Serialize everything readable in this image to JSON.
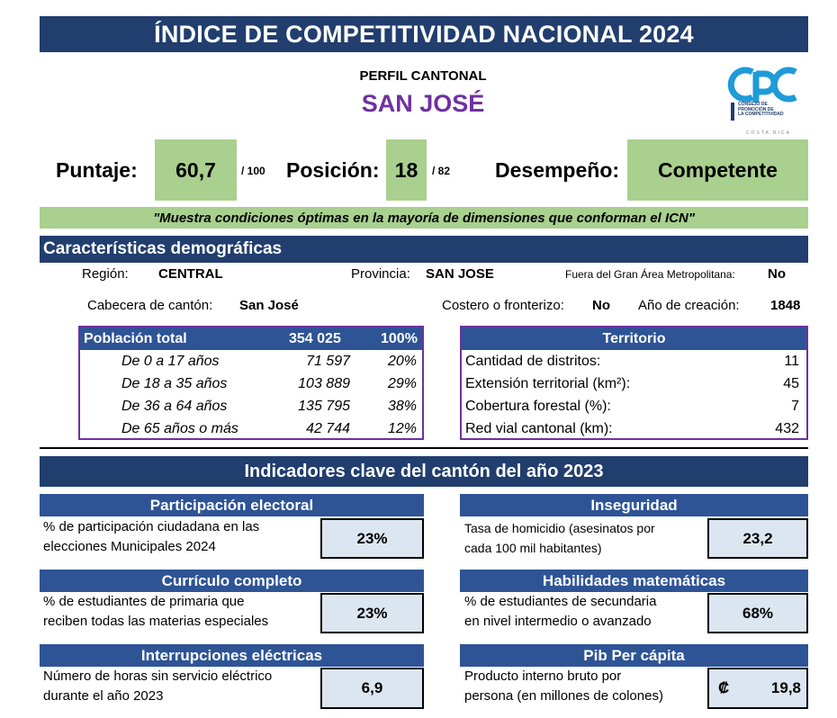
{
  "header": {
    "title": "ÍNDICE DE COMPETITIVIDAD NACIONAL 2024",
    "subtitle": "PERFIL CANTONAL",
    "canton": "SAN JOSÉ"
  },
  "logo": {
    "letters": "CPC",
    "line1": "CONSEJO DE",
    "line2": "PROMOCIÓN DE",
    "line3": "LA COMPETITIVIDAD",
    "country": "COSTA RICA"
  },
  "score": {
    "puntaje_label": "Puntaje:",
    "puntaje_value": "60,7",
    "puntaje_max": "/ 100",
    "posicion_label": "Posición:",
    "posicion_value": "18",
    "posicion_max": "/ 82",
    "desempeno_label": "Desempeño:",
    "desempeno_value": "Competente"
  },
  "description": "\"Muestra condiciones óptimas en la mayoría de dimensiones que conforman el ICN\"",
  "demographics": {
    "header": "Características demográficas",
    "region_label": "Región:",
    "region_value": "CENTRAL",
    "provincia_label": "Provincia:",
    "provincia_value": "SAN JOSE",
    "gam_label": "Fuera del Gran Área Metropolitana:",
    "gam_value": "No",
    "cabecera_label": "Cabecera de cantón:",
    "cabecera_value": "San José",
    "costero_label": "Costero o fronterizo:",
    "costero_value": "No",
    "creacion_label": "Año de creación:",
    "creacion_value": "1848"
  },
  "population": {
    "header_label": "Población total",
    "header_value": "354 025",
    "header_pct": "100%",
    "rows": [
      {
        "label": "De 0 a 17 años",
        "value": "71 597",
        "pct": "20%"
      },
      {
        "label": "De 18 a 35 años",
        "value": "103 889",
        "pct": "29%"
      },
      {
        "label": "De 36 a 64 años",
        "value": "135 795",
        "pct": "38%"
      },
      {
        "label": "De 65 años o más",
        "value": "42 744",
        "pct": "12%"
      }
    ]
  },
  "territory": {
    "header": "Territorio",
    "rows": [
      {
        "label": "Cantidad de distritos:",
        "value": "11"
      },
      {
        "label": "Extensión territorial (km²):",
        "value": "45"
      },
      {
        "label": "Cobertura forestal (%):",
        "value": "7"
      },
      {
        "label": "Red vial cantonal (km):",
        "value": "432"
      }
    ]
  },
  "indicators": {
    "header": "Indicadores clave del cantón del año 2023",
    "participacion": {
      "title": "Participación electoral",
      "line1": "% de participación ciudadana en las",
      "line2": "elecciones Municipales 2024",
      "value": "23%"
    },
    "inseguridad": {
      "title": "Inseguridad",
      "line1": "Tasa de homicidio (asesinatos por",
      "line2": "cada 100 mil habitantes)",
      "value": "23,2"
    },
    "curriculo": {
      "title": "Currículo completo",
      "line1": "% de estudiantes de primaria que",
      "line2": "reciben todas las materias especiales",
      "value": "23%"
    },
    "matematicas": {
      "title": "Habilidades matemáticas",
      "line1": "% de estudiantes de secundaria",
      "line2": "en nivel intermedio o avanzado",
      "value": "68%"
    },
    "electricas": {
      "title": "Interrupciones eléctricas",
      "line1": "Número de horas sin servicio eléctrico",
      "line2": "durante el año 2023",
      "value": "6,9"
    },
    "pib": {
      "title": "Pib Per cápita",
      "line1": "Producto interno bruto por",
      "line2": "persona (en millones de colones)",
      "currency": "₡",
      "value": "19,8"
    }
  },
  "colors": {
    "navy": "#213e6e",
    "blue": "#2e5496",
    "green": "#a9d08e",
    "light_blue": "#dce6f1",
    "purple": "#7030a0"
  }
}
